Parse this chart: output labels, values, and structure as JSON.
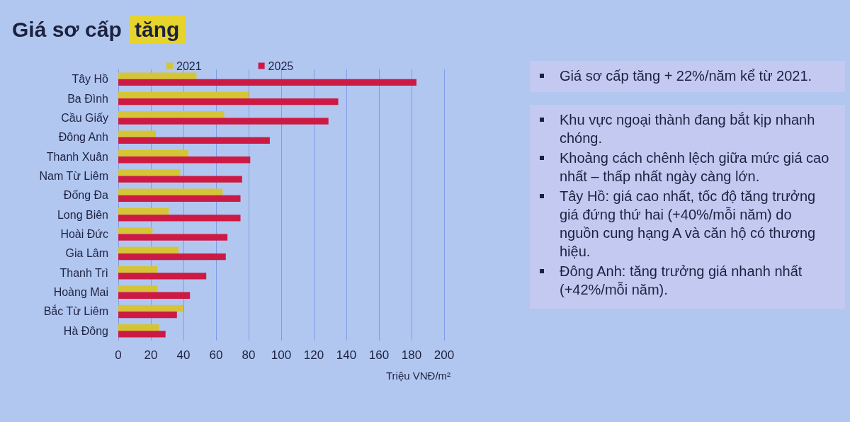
{
  "chart_data": {
    "type": "bar",
    "orientation": "horizontal",
    "title": "Giá sơ cấp tăng",
    "xlabel": "Triệu VNĐ/m²",
    "categories": [
      "Tây Hồ",
      "Ba Đình",
      "Cầu Giấy",
      "Đông Anh",
      "Thanh Xuân",
      "Nam Từ Liêm",
      "Đống Đa",
      "Long Biên",
      "Hoài Đức",
      "Gia Lâm",
      "Thanh Trì",
      "Hoàng Mai",
      "Bắc Từ Liêm",
      "Hà Đông"
    ],
    "series": [
      {
        "name": "2021",
        "color": "#d5c536",
        "values": [
          48,
          80,
          65,
          23,
          43,
          38,
          64,
          31,
          21,
          37,
          24,
          24,
          40,
          25
        ]
      },
      {
        "name": "2025",
        "color": "#cc1a44",
        "values": [
          183,
          135,
          129,
          93,
          81,
          76,
          75,
          75,
          67,
          66,
          54,
          44,
          36,
          29
        ]
      }
    ],
    "xlim": [
      0,
      200
    ],
    "xticks": [
      0,
      20,
      40,
      60,
      80,
      100,
      120,
      140,
      160,
      180,
      200
    ],
    "grid": "x",
    "legend": "top",
    "annotations": [
      "Giá sơ cấp tăng + 22%/năm kể từ 2021.",
      "Khu vực ngoại thành đang bắt kịp nhanh chóng.",
      "Khoảng cách chênh lệch giữa mức giá cao nhất – thấp nhất ngày càng lớn.",
      "Tây Hồ: giá cao nhất, tốc độ tăng trưởng giá đứng thứ hai (+40%/mỗi năm) do nguồn cung hạng A và căn hộ có thương hiệu.",
      "Đông Anh: tăng trưởng giá nhanh nhất (+42%/mỗi năm)."
    ]
  }
}
